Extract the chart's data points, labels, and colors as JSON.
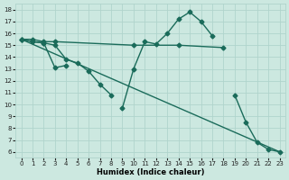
{
  "xlabel": "Humidex (Indice chaleur)",
  "bg_color": "#cce8e0",
  "grid_color": "#b0d4cc",
  "line_color": "#1a6b5a",
  "xlim": [
    -0.5,
    23.5
  ],
  "ylim": [
    5.5,
    18.5
  ],
  "xticks": [
    0,
    1,
    2,
    3,
    4,
    5,
    6,
    7,
    8,
    9,
    10,
    11,
    12,
    13,
    14,
    15,
    16,
    17,
    18,
    19,
    20,
    21,
    22,
    23
  ],
  "yticks": [
    6,
    7,
    8,
    9,
    10,
    11,
    12,
    13,
    14,
    15,
    16,
    17,
    18
  ],
  "series": [
    {
      "x": [
        0,
        1,
        2,
        3,
        10,
        14,
        18
      ],
      "y": [
        15.5,
        15.5,
        15.3,
        15.3,
        15.0,
        15.0,
        14.8
      ],
      "marker": "D",
      "markersize": 2.5,
      "linewidth": 1.0
    },
    {
      "x": [
        0,
        1,
        2,
        3,
        4,
        5,
        6,
        7,
        8,
        9,
        10,
        11,
        12,
        13,
        14,
        15,
        16,
        17,
        18,
        19,
        20,
        21,
        22,
        23
      ],
      "y": [
        15.5,
        15.3,
        15.2,
        13.1,
        13.3,
        null,
        null,
        null,
        null,
        9.7,
        13.0,
        15.3,
        15.1,
        16.0,
        17.2,
        17.8,
        17.0,
        15.8,
        null,
        null,
        null,
        null,
        null,
        null
      ],
      "marker": "D",
      "markersize": 2.5,
      "linewidth": 1.0
    },
    {
      "x": [
        0,
        1,
        2,
        3,
        4,
        5,
        6,
        7,
        8,
        9,
        10,
        11,
        12,
        13,
        14,
        15,
        16,
        17,
        18,
        19,
        20,
        21,
        22,
        23
      ],
      "y": [
        15.5,
        15.3,
        15.2,
        15.0,
        13.8,
        13.5,
        12.8,
        11.7,
        10.8,
        null,
        null,
        null,
        null,
        null,
        null,
        null,
        null,
        null,
        null,
        10.8,
        8.5,
        6.8,
        6.2,
        6.0
      ],
      "marker": "D",
      "markersize": 2.5,
      "linewidth": 1.0
    },
    {
      "x": [
        0,
        23
      ],
      "y": [
        15.5,
        6.0
      ],
      "marker": null,
      "markersize": 0,
      "linewidth": 1.0
    }
  ]
}
